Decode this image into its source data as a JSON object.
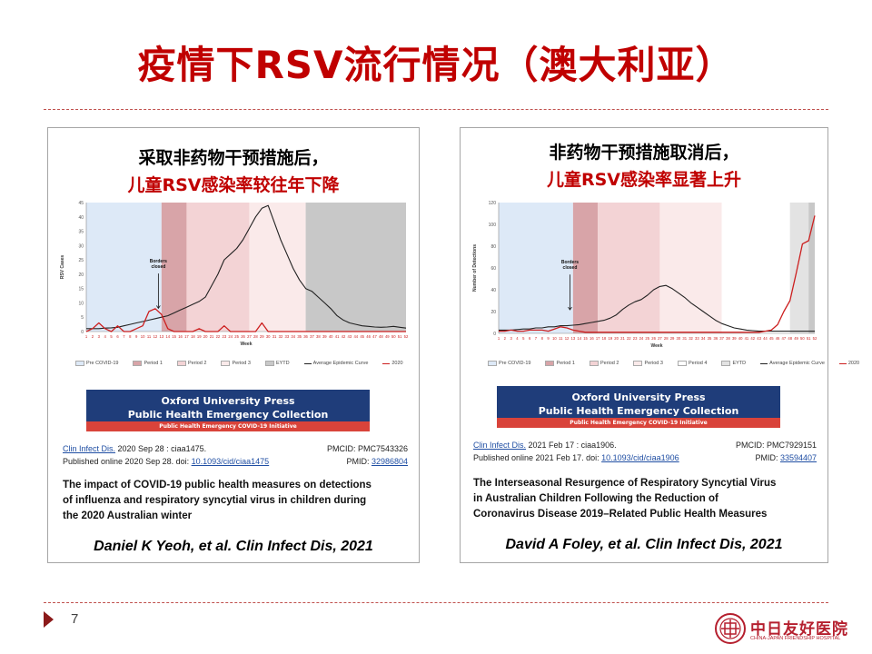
{
  "slide": {
    "title": "疫情下RSV流行情况（澳大利亚）",
    "page_number": "7",
    "logo": {
      "name_cn": "中日友好医院",
      "name_en": "CHINA-JAPAN FRIENDSHIP HOSPITAL"
    }
  },
  "panels": [
    {
      "heading_line1": "采取非药物干预措施后，",
      "heading_line2": "儿童RSV感染率较往年下降",
      "author": "Daniel K Yeoh, et al. Clin Infect Dis, 2021",
      "oup": {
        "line1": "Oxford University Press",
        "line2": "Public Health Emergency Collection",
        "bar": "Public Health Emergency COVID-19 Initiative"
      },
      "citation": {
        "journal": "Clin Infect Dis.",
        "journal_rest": " 2020 Sep 28 : ciaa1475.",
        "published": "Published online 2020 Sep 28. doi: ",
        "doi": "10.1093/cid/ciaa1475",
        "pmcid": "PMCID: PMC7543326",
        "pmid_label": "PMID: ",
        "pmid": "32986804"
      },
      "paper_title": [
        "The impact of COVID-19 public health measures on detections",
        "of influenza and respiratory syncytial virus in children during",
        "the 2020 Australian winter"
      ]
    },
    {
      "heading_line1": "非药物干预措施取消后，",
      "heading_line2": "儿童RSV感染率显著上升",
      "author": "David A Foley, et al. Clin Infect Dis, 2021",
      "oup": {
        "line1": "Oxford University Press",
        "line2": "Public Health Emergency Collection",
        "bar": "Public Health Emergency COVID-19 Initiative"
      },
      "citation": {
        "journal": "Clin Infect Dis.",
        "journal_rest": " 2021 Feb 17 : ciaa1906.",
        "published": "Published online 2021 Feb 17. doi: ",
        "doi": "10.1093/cid/ciaa1906",
        "pmcid": "PMCID: PMC7929151",
        "pmid_label": "PMID: ",
        "pmid": "33594407"
      },
      "paper_title": [
        "The Interseasonal Resurgence of Respiratory Syncytial Virus",
        "in Australian Children Following the Reduction of",
        "Coronavirus Disease 2019–Related Public Health Measures"
      ]
    }
  ],
  "chart_data": [
    {
      "type": "line",
      "xlabel": "Week",
      "ylabel": "RSV Cases",
      "ylim": [
        0,
        45
      ],
      "yticks": [
        0,
        5,
        10,
        15,
        20,
        25,
        30,
        35,
        40,
        45
      ],
      "x": [
        1,
        2,
        3,
        4,
        5,
        6,
        7,
        8,
        9,
        10,
        11,
        12,
        13,
        14,
        15,
        16,
        17,
        18,
        19,
        20,
        21,
        22,
        23,
        24,
        25,
        26,
        27,
        28,
        29,
        30,
        31,
        32,
        33,
        34,
        35,
        36,
        37,
        38,
        39,
        40,
        41,
        42,
        43,
        44,
        45,
        46,
        47,
        48,
        49,
        50,
        51,
        52
      ],
      "regions": [
        {
          "name": "Pre COVID-19",
          "from": 1,
          "to": 13,
          "color": "#dde9f7"
        },
        {
          "name": "Period 1",
          "from": 13,
          "to": 17,
          "color": "#d8a4a8"
        },
        {
          "name": "Period 2",
          "from": 17,
          "to": 27,
          "color": "#f3d3d5"
        },
        {
          "name": "Period 3",
          "from": 27,
          "to": 36,
          "color": "#faeaea"
        },
        {
          "name": "EYTD",
          "from": 36,
          "to": 52,
          "color": "#c8c8c8"
        }
      ],
      "annotation": {
        "text": [
          "Borders",
          "closed"
        ],
        "x": 12.5
      },
      "series": [
        {
          "name": "Average Epidemic Curve",
          "color": "#222222",
          "values": [
            1,
            1,
            1,
            1.2,
            1.3,
            1.5,
            2,
            2.5,
            3,
            3.5,
            4,
            4.5,
            5,
            5.5,
            6.5,
            7.5,
            8.5,
            9.5,
            10.5,
            12,
            16,
            20,
            25,
            27,
            29,
            32,
            36,
            40,
            43,
            44,
            38,
            32,
            27,
            22,
            18,
            15,
            14,
            12,
            10,
            8,
            5.5,
            4,
            3,
            2.5,
            2,
            1.8,
            1.6,
            1.5,
            1.6,
            1.8,
            1.5,
            1.2
          ]
        },
        {
          "name": "2020",
          "color": "#cc1f1f",
          "values": [
            0,
            1,
            3,
            1,
            0,
            2,
            0,
            0,
            1,
            2,
            7,
            8,
            6,
            1,
            0,
            0,
            0,
            0,
            1,
            0,
            0,
            0,
            2,
            0,
            0,
            0,
            0,
            0,
            3,
            0,
            0,
            0,
            0,
            0,
            0,
            0,
            0,
            0,
            0,
            0,
            0,
            0,
            0,
            0,
            0,
            0,
            0,
            0,
            0,
            0,
            0,
            0
          ]
        }
      ]
    },
    {
      "type": "line",
      "xlabel": "Week",
      "ylabel": "Number of Detections",
      "ylim": [
        0,
        120
      ],
      "yticks": [
        0,
        20,
        40,
        60,
        80,
        100,
        120
      ],
      "x": [
        1,
        2,
        3,
        4,
        5,
        6,
        7,
        8,
        9,
        10,
        11,
        12,
        13,
        14,
        15,
        16,
        17,
        18,
        19,
        20,
        21,
        22,
        23,
        24,
        25,
        26,
        27,
        28,
        29,
        30,
        31,
        32,
        33,
        34,
        35,
        36,
        37,
        38,
        39,
        40,
        41,
        42,
        43,
        44,
        45,
        46,
        47,
        48,
        49,
        50,
        51,
        52
      ],
      "regions": [
        {
          "name": "Pre COVID-19",
          "from": 1,
          "to": 13,
          "color": "#dde9f7"
        },
        {
          "name": "Period 1",
          "from": 13,
          "to": 17,
          "color": "#d8a4a8"
        },
        {
          "name": "Period 2",
          "from": 17,
          "to": 27,
          "color": "#f3d3d5"
        },
        {
          "name": "Period 3",
          "from": 27,
          "to": 37,
          "color": "#faeaea"
        },
        {
          "name": "Period 4",
          "from": 37,
          "to": 48,
          "color": "#ffffff"
        },
        {
          "name": "EYTD",
          "from": 48,
          "to": 51,
          "color": "#e3e3e3"
        },
        {
          "name": "EYTD",
          "from": 51,
          "to": 52,
          "color": "#c8c8c8"
        }
      ],
      "annotation": {
        "text": [
          "Borders",
          "closed"
        ],
        "x": 12.5
      },
      "series": [
        {
          "name": "Average Epidemic Curve",
          "color": "#222222",
          "values": [
            3,
            3,
            3,
            3.5,
            4,
            4,
            5,
            5,
            6,
            6,
            7,
            7,
            7.5,
            8,
            9,
            10,
            11,
            12,
            14,
            17,
            22,
            26,
            29,
            31,
            35,
            40,
            43,
            44,
            41,
            37,
            33,
            28,
            24,
            20,
            16,
            12,
            9,
            7,
            5,
            4,
            3,
            2.5,
            2,
            2,
            2,
            2,
            2,
            2,
            2,
            2,
            2,
            2
          ]
        },
        {
          "name": "2020",
          "color": "#cc1f1f",
          "values": [
            2,
            2,
            3,
            2,
            2,
            3,
            3,
            3,
            2,
            4,
            6,
            5,
            3,
            2,
            1,
            1,
            1,
            1,
            1,
            1,
            1,
            1,
            1,
            1,
            1,
            1,
            1,
            1,
            1,
            1,
            1,
            1,
            1,
            1,
            1,
            1,
            1,
            1,
            1,
            1,
            1,
            1,
            1,
            2,
            3,
            8,
            20,
            30,
            55,
            82,
            85,
            108
          ]
        }
      ]
    }
  ]
}
